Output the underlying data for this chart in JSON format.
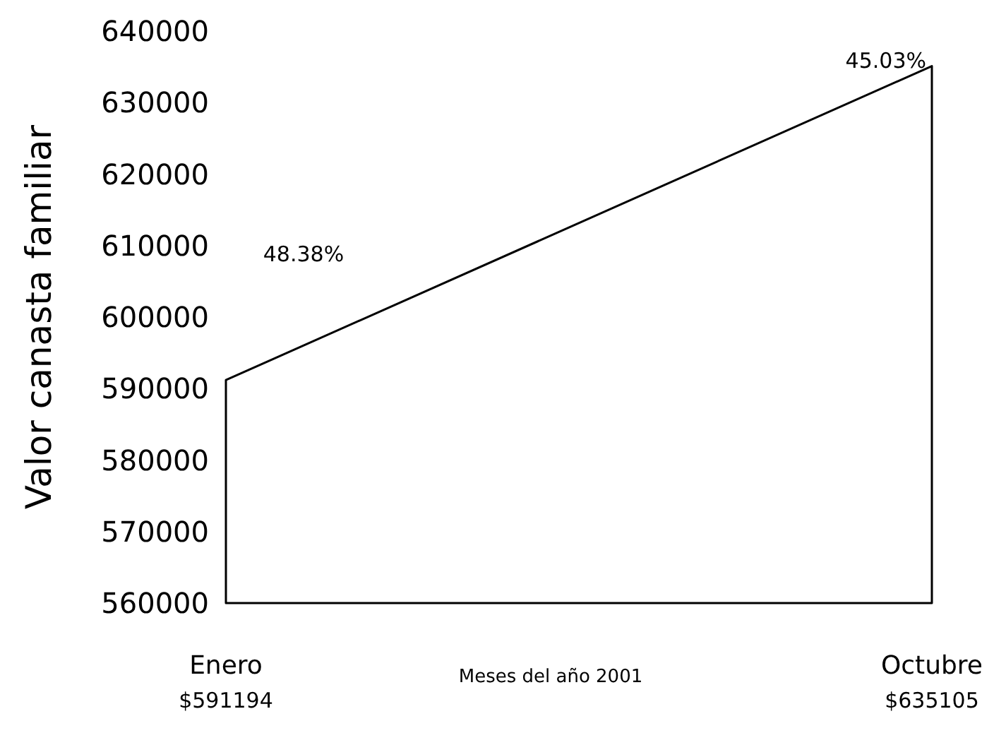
{
  "chart_data": {
    "type": "area",
    "xlabel": "Meses del año 2001",
    "ylabel": "Valor canasta familiar",
    "categories": [
      "Enero\n$591194",
      "Octubre\n$635105"
    ],
    "series": [
      {
        "color": "#ffffff",
        "values": [
          591194,
          635105
        ]
      }
    ],
    "ylim": [
      560000,
      640000
    ],
    "yticks": [
      560000,
      570000,
      580000,
      590000,
      600000,
      610000,
      620000,
      630000,
      640000
    ],
    "grid": false,
    "annotations": [
      "48.38%",
      "45.03%"
    ]
  }
}
